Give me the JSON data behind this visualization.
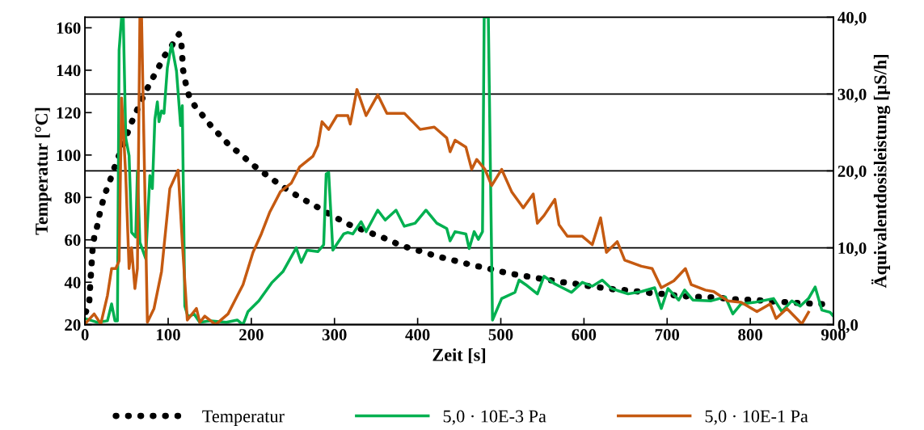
{
  "chart_data": {
    "type": "line",
    "xlabel": "Zeit [s]",
    "ylabel": "Temperatur [°C]",
    "y2label": "Äquivalentdosisleistung [µS/h]",
    "xlim": [
      0,
      900
    ],
    "xticks": [
      0,
      100,
      200,
      300,
      400,
      500,
      600,
      700,
      800,
      900
    ],
    "ylim": [
      20,
      165
    ],
    "yticks": [
      20,
      40,
      60,
      80,
      100,
      120,
      140,
      160
    ],
    "y2lim": [
      0,
      40
    ],
    "y2ticks": [
      {
        "value": 0,
        "label": "0,0"
      },
      {
        "value": 10,
        "label": "10,0"
      },
      {
        "value": 20,
        "label": "20,0"
      },
      {
        "value": 30,
        "label": "30,0"
      },
      {
        "value": 40,
        "label": "40,0"
      }
    ],
    "grid": "y",
    "legend": "bottom",
    "series": [
      {
        "name": "Temperatur",
        "color": "#000000",
        "line_style": "dotted",
        "axis": "y",
        "x": [
          1,
          5,
          6,
          7,
          8,
          9,
          11,
          15,
          18,
          22,
          27,
          32,
          37,
          43,
          49,
          54,
          60,
          67,
          73,
          81,
          88,
          96,
          105,
          113,
          116,
          117,
          118,
          121,
          125,
          133,
          143,
          153,
          163,
          175,
          187,
          198,
          211,
          224,
          236,
          250,
          263,
          277,
          290,
          304,
          315,
          332,
          347,
          362,
          376,
          391,
          406,
          421,
          436,
          452,
          466,
          482,
          497,
          512,
          528,
          543,
          559,
          574,
          590,
          604,
          620,
          637,
          652,
          668,
          683,
          698,
          713,
          730,
          745,
          761,
          776,
          792,
          807,
          823,
          839,
          854,
          870,
          886,
          900
        ],
        "values": [
          26,
          30,
          37,
          43,
          49,
          55,
          61,
          67,
          73,
          79,
          85,
          90,
          96,
          102,
          108,
          113.5,
          119,
          125,
          130,
          136,
          141,
          147,
          152,
          157,
          152,
          146,
          140,
          134,
          128,
          122.5,
          118,
          113,
          109,
          104,
          100.6,
          96.5,
          92.6,
          89,
          85.5,
          82,
          79,
          76,
          73,
          70,
          67.6,
          65,
          62.7,
          60.5,
          58,
          56,
          54.4,
          52.5,
          51,
          49.5,
          48,
          46.8,
          45.3,
          44,
          43,
          42,
          41,
          40,
          39.3,
          38.3,
          37.5,
          36.6,
          36.2,
          35.5,
          34.8,
          34.4,
          33.6,
          33.2,
          33,
          32.8,
          32,
          31.8,
          31.6,
          31,
          30.7,
          30.3,
          30,
          29.7,
          29.6
        ]
      },
      {
        "name": "5,0 · 10E-3 Pa",
        "color": "#00b050",
        "line_style": "solid",
        "axis": "y2",
        "x": [
          0,
          15,
          27,
          32,
          36,
          39,
          41,
          44,
          46,
          49,
          53,
          56,
          61,
          63,
          66,
          73,
          78,
          81,
          84,
          87,
          89,
          92,
          95,
          99,
          104,
          110,
          115,
          117,
          120,
          124,
          131,
          138,
          151,
          170,
          183,
          190,
          196,
          209,
          225,
          238,
          254,
          260,
          267,
          280,
          287,
          290,
          293,
          298,
          311,
          316,
          322,
          332,
          338,
          352,
          361,
          374,
          384,
          397,
          410,
          423,
          435,
          439,
          445,
          458,
          462,
          468,
          473,
          478,
          480,
          485,
          490,
          501,
          517,
          522,
          530,
          544,
          552,
          565,
          585,
          598,
          610,
          622,
          633,
          653,
          669,
          685,
          693,
          701,
          714,
          721,
          731,
          753,
          770,
          779,
          789,
          805,
          828,
          838,
          850,
          860,
          870,
          878,
          886,
          896,
          900
        ],
        "values": [
          0.8,
          0.3,
          0.5,
          2.7,
          0.5,
          0.5,
          35.7,
          40,
          40,
          24.3,
          22,
          12,
          11.4,
          20,
          10.7,
          8.6,
          19.4,
          17.7,
          26.7,
          29,
          26.4,
          27.8,
          27.5,
          33.4,
          36.5,
          33,
          25.9,
          28.5,
          2.4,
          1,
          1.4,
          0.3,
          0.5,
          0.3,
          0.6,
          0,
          1.7,
          3.1,
          5.5,
          6.9,
          10,
          8.1,
          9.7,
          9.5,
          10.4,
          19.6,
          19.8,
          9.7,
          11.8,
          12,
          11.8,
          13.4,
          12.1,
          14.9,
          13.6,
          14.9,
          12.8,
          13.2,
          14.9,
          13.2,
          12.5,
          10.9,
          12.1,
          11.8,
          9.9,
          12.1,
          11.1,
          12.1,
          40,
          40,
          0.6,
          3.4,
          4.2,
          5.8,
          5.2,
          4,
          6.3,
          5.3,
          4.2,
          5.5,
          5,
          5.8,
          4.7,
          4,
          4.3,
          4.8,
          2.1,
          4.7,
          3.2,
          4.5,
          3.2,
          3.1,
          3.6,
          1.4,
          2.7,
          2.9,
          3.4,
          1.7,
          3.1,
          2.4,
          3.4,
          4.9,
          1.9,
          1.6,
          1.1
        ]
      },
      {
        "name": "5,0 · 10E-1 Pa",
        "color": "#c55a11",
        "line_style": "solid",
        "axis": "y2",
        "x": [
          0,
          11,
          19,
          27,
          32,
          37,
          41,
          44,
          49,
          53,
          56,
          60,
          63,
          66,
          68,
          75,
          83,
          92,
          102,
          112,
          117,
          123,
          134,
          138,
          144,
          157,
          172,
          180,
          190,
          202,
          212,
          222,
          235,
          248,
          258,
          274,
          280,
          285,
          293,
          303,
          316,
          319,
          327,
          338,
          352,
          363,
          384,
          403,
          420,
          435,
          439,
          445,
          458,
          465,
          471,
          481,
          489,
          501,
          513,
          527,
          539,
          544,
          552,
          565,
          570,
          580,
          598,
          610,
          620,
          627,
          640,
          649,
          669,
          682,
          693,
          708,
          722,
          729,
          746,
          756,
          773,
          789,
          808,
          824,
          831,
          844,
          862,
          870
        ],
        "values": [
          0.1,
          1.4,
          0.1,
          3.8,
          7.3,
          7.3,
          8.3,
          29.5,
          19.4,
          7.3,
          10,
          4.7,
          7.3,
          40,
          40,
          0.3,
          2.1,
          6.9,
          17.7,
          20.1,
          10.7,
          0.6,
          2.1,
          0.3,
          1.1,
          0,
          1.4,
          3.1,
          5.2,
          9.4,
          11.8,
          14.6,
          17.3,
          18.4,
          20.5,
          21.9,
          23.3,
          26.4,
          25.4,
          27.2,
          27.2,
          26.1,
          30.6,
          27.2,
          29.9,
          27.5,
          27.5,
          25.4,
          25.7,
          24.3,
          22.5,
          24,
          23.1,
          20.2,
          21.5,
          20.2,
          18.1,
          20.2,
          17.3,
          15.2,
          17,
          13.2,
          14.2,
          16.3,
          13,
          11.5,
          11.5,
          10.4,
          13.9,
          9.4,
          10.8,
          8.4,
          7.6,
          7.3,
          4.8,
          5.7,
          7.3,
          5.2,
          4.5,
          4.3,
          3.1,
          2.9,
          1.7,
          2.7,
          0.8,
          2.1,
          0.1,
          1.6
        ]
      }
    ]
  }
}
